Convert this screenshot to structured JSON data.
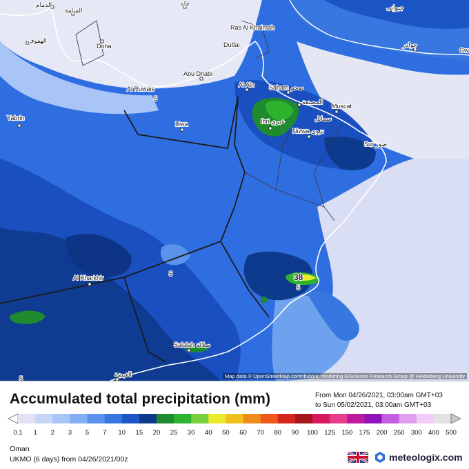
{
  "map": {
    "cities": [
      {
        "name": "الدمام"
      },
      {
        "name": "المنامة"
      },
      {
        "name": "الهفوف"
      },
      {
        "name": "Doha"
      },
      {
        "name": "Ras Al Khaimah"
      },
      {
        "name": "Dubai"
      },
      {
        "name": "Abu Dhabi"
      },
      {
        "name": "Al Ruwais"
      },
      {
        "name": "Al Ain"
      },
      {
        "name": "Saham صحم"
      },
      {
        "name": "المصنعة"
      },
      {
        "name": "Muscat"
      },
      {
        "name": "سمائل"
      },
      {
        "name": "Ibri عبري"
      },
      {
        "name": "Nizwa نزوى"
      },
      {
        "name": "Sur صور"
      },
      {
        "name": "Yabrin"
      },
      {
        "name": "Liwa"
      },
      {
        "name": "Al Kharkhir"
      },
      {
        "name": "Salalah صلالة"
      },
      {
        "name": "الغيضة"
      },
      {
        "name": "جوادر"
      },
      {
        "name": "جيوانى"
      },
      {
        "name": "چاه"
      },
      {
        "name": "Gw"
      }
    ],
    "value_labels": [
      "5",
      "5",
      "5",
      "38",
      "5"
    ],
    "attribution": "Map data © OpenStreetMap contributors, rendering GIScience Research Group @ Heidelberg University"
  },
  "header": {
    "title": "Accumulated total precipitation (mm)",
    "from_line": "From Mon 04/26/2021, 03:00am GMT+03",
    "to_line": "to Sun 05/02/2021, 03:00am GMT+03"
  },
  "scale": {
    "labels": [
      "0.1",
      "1",
      "2",
      "3",
      "5",
      "7",
      "10",
      "15",
      "20",
      "25",
      "30",
      "40",
      "50",
      "60",
      "70",
      "80",
      "90",
      "100",
      "125",
      "150",
      "175",
      "200",
      "250",
      "300",
      "400",
      "500"
    ],
    "colors": [
      "#e1e1f3",
      "#c6d5f7",
      "#a9c4f6",
      "#84aef2",
      "#5b93ec",
      "#3877e0",
      "#1c56c6",
      "#0e3a8e",
      "#1f8a2e",
      "#2fb32f",
      "#77d13a",
      "#eaea2a",
      "#f0c11c",
      "#f08c1a",
      "#ef5a1c",
      "#d6261b",
      "#a8141b",
      "#d6185c",
      "#e73d8d",
      "#be1a9e",
      "#9012b8",
      "#c45ee0",
      "#e39ef0",
      "#f1cef5",
      "#e2e2e2"
    ]
  },
  "footer": {
    "region": "Oman",
    "model_line": "UKMO (6 days) from 04/26/2021/00z",
    "brand": "meteologix.com"
  }
}
